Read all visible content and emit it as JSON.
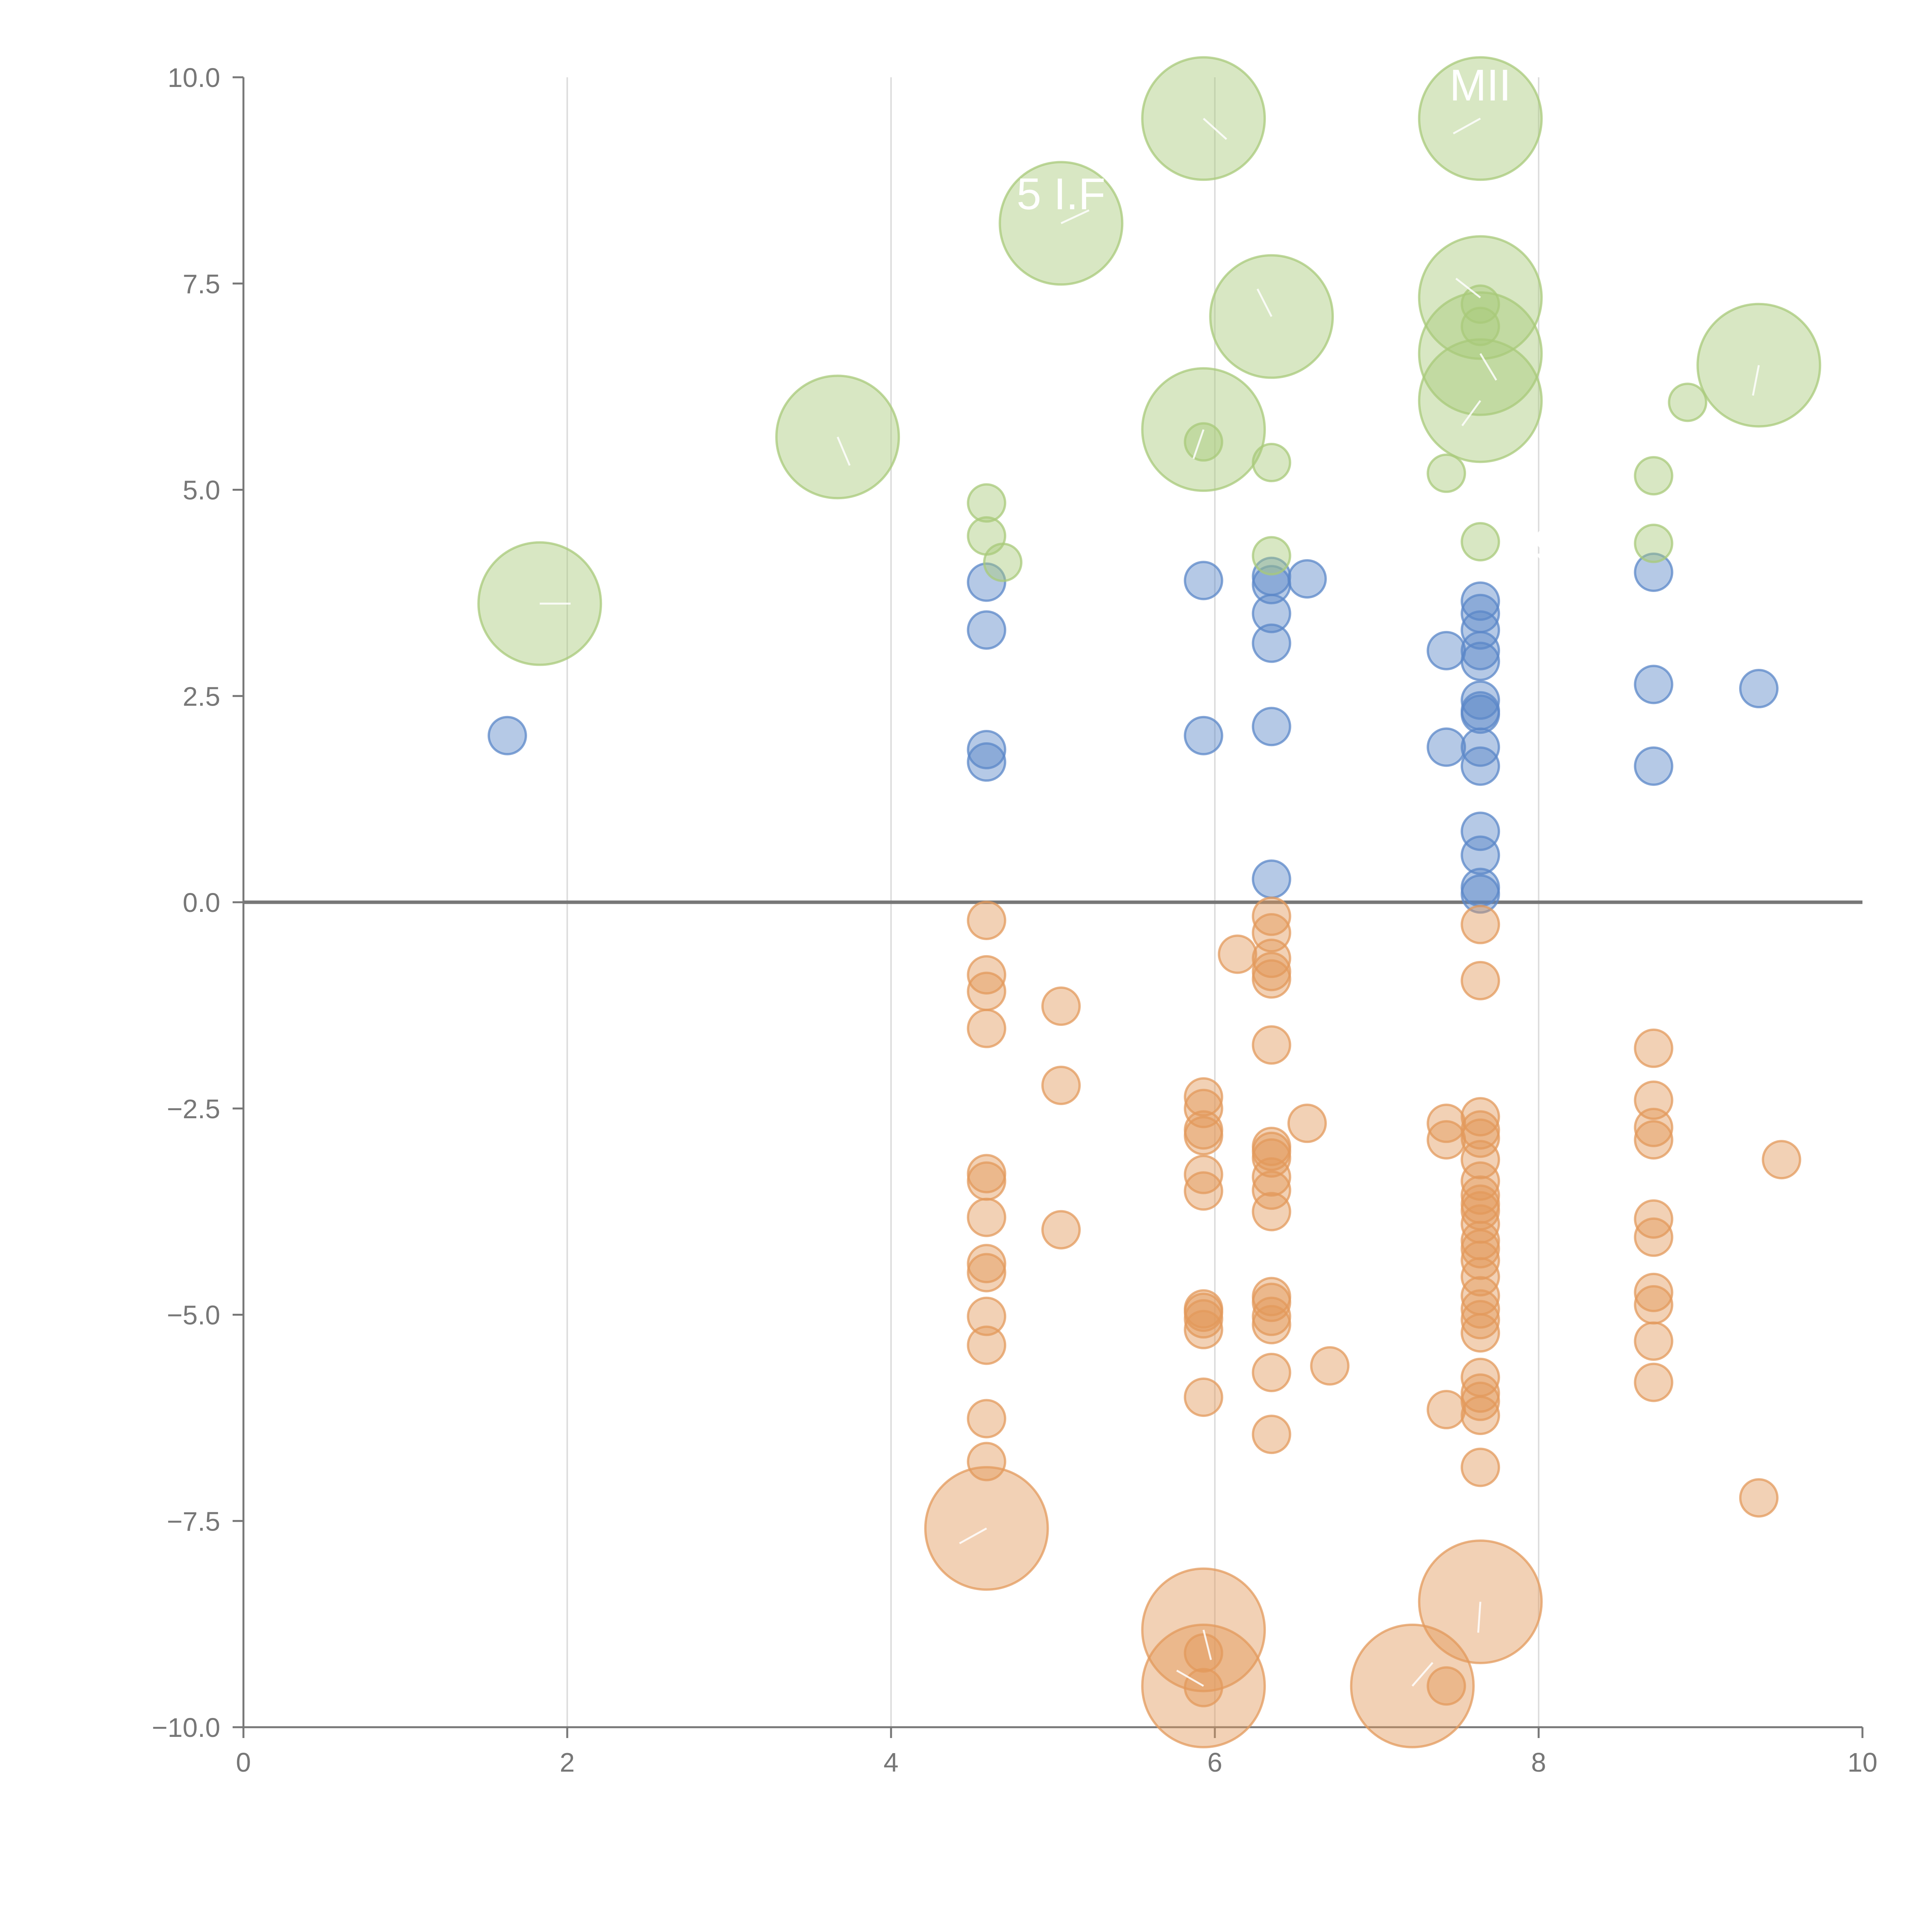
{
  "chart_data": {
    "type": "scatter",
    "variant": "bubble",
    "title": "",
    "xlabel": "",
    "ylabel": "",
    "xlim": [
      0,
      10
    ],
    "ylim": [
      -10,
      10
    ],
    "x_ticks": [
      "0",
      "2",
      "4",
      "6",
      "8",
      "10"
    ],
    "y_ticks": [
      "10.0",
      "7.5",
      "5.0",
      "2.5",
      "0.0",
      "−2.5",
      "−5.0",
      "−7.5",
      "−10.0"
    ],
    "x_gridlines": [
      2,
      4,
      6,
      8
    ],
    "zero_line": 0,
    "series": [
      {
        "name": "blue",
        "color": "#5b87c8",
        "points": [
          {
            "x": 1.63,
            "y": 2.02,
            "size": 1
          },
          {
            "x": 4.59,
            "y": 3.88,
            "size": 1
          },
          {
            "x": 4.59,
            "y": 3.3,
            "size": 1
          },
          {
            "x": 4.59,
            "y": 1.85,
            "size": 1
          },
          {
            "x": 4.59,
            "y": 1.7,
            "size": 1
          },
          {
            "x": 5.93,
            "y": 3.9,
            "size": 1
          },
          {
            "x": 5.93,
            "y": 2.02,
            "size": 1
          },
          {
            "x": 6.35,
            "y": 3.95,
            "size": 1
          },
          {
            "x": 6.35,
            "y": 3.85,
            "size": 1
          },
          {
            "x": 6.35,
            "y": 3.5,
            "size": 1
          },
          {
            "x": 6.35,
            "y": 3.14,
            "size": 1
          },
          {
            "x": 6.35,
            "y": 2.13,
            "size": 1
          },
          {
            "x": 6.35,
            "y": 0.28,
            "size": 1
          },
          {
            "x": 6.57,
            "y": 3.92,
            "size": 1
          },
          {
            "x": 7.43,
            "y": 3.05,
            "size": 1
          },
          {
            "x": 7.43,
            "y": 1.88,
            "size": 1
          },
          {
            "x": 7.64,
            "y": 3.65,
            "size": 1
          },
          {
            "x": 7.64,
            "y": 3.5,
            "size": 1
          },
          {
            "x": 7.64,
            "y": 3.3,
            "size": 1
          },
          {
            "x": 7.64,
            "y": 3.05,
            "size": 1
          },
          {
            "x": 7.64,
            "y": 2.92,
            "size": 1
          },
          {
            "x": 7.64,
            "y": 2.45,
            "size": 1
          },
          {
            "x": 7.64,
            "y": 2.32,
            "size": 1
          },
          {
            "x": 7.64,
            "y": 2.28,
            "size": 1
          },
          {
            "x": 7.64,
            "y": 1.88,
            "size": 1
          },
          {
            "x": 7.64,
            "y": 1.65,
            "size": 1
          },
          {
            "x": 7.64,
            "y": 0.86,
            "size": 1
          },
          {
            "x": 7.64,
            "y": 0.57,
            "size": 1
          },
          {
            "x": 7.64,
            "y": 0.18,
            "size": 1
          },
          {
            "x": 7.64,
            "y": 0.1,
            "size": 1
          },
          {
            "x": 8.71,
            "y": 4.0,
            "size": 1
          },
          {
            "x": 8.71,
            "y": 2.64,
            "size": 1
          },
          {
            "x": 8.71,
            "y": 1.65,
            "size": 1
          },
          {
            "x": 9.36,
            "y": 2.59,
            "size": 1
          }
        ]
      },
      {
        "name": "orange",
        "color": "#e39a5c",
        "points": [
          {
            "x": 4.59,
            "y": -0.22,
            "size": 1
          },
          {
            "x": 4.59,
            "y": -0.88,
            "size": 1
          },
          {
            "x": 4.59,
            "y": -1.08,
            "size": 1
          },
          {
            "x": 4.59,
            "y": -1.53,
            "size": 1
          },
          {
            "x": 4.59,
            "y": -3.29,
            "size": 1
          },
          {
            "x": 4.59,
            "y": -3.38,
            "size": 1
          },
          {
            "x": 4.59,
            "y": -3.82,
            "size": 1
          },
          {
            "x": 4.59,
            "y": -4.38,
            "size": 1
          },
          {
            "x": 4.59,
            "y": -4.49,
            "size": 1
          },
          {
            "x": 4.59,
            "y": -5.02,
            "size": 1
          },
          {
            "x": 4.59,
            "y": -5.37,
            "size": 1
          },
          {
            "x": 4.59,
            "y": -6.26,
            "size": 1
          },
          {
            "x": 4.59,
            "y": -6.78,
            "size": 1
          },
          {
            "x": 4.59,
            "y": -7.59,
            "size": 3.3
          },
          {
            "x": 5.05,
            "y": -1.26,
            "size": 1
          },
          {
            "x": 5.05,
            "y": -2.22,
            "size": 1
          },
          {
            "x": 5.05,
            "y": -3.97,
            "size": 1
          },
          {
            "x": 5.93,
            "y": -2.36,
            "size": 1
          },
          {
            "x": 5.93,
            "y": -2.5,
            "size": 1
          },
          {
            "x": 5.93,
            "y": -2.76,
            "size": 1
          },
          {
            "x": 5.93,
            "y": -2.83,
            "size": 1
          },
          {
            "x": 5.93,
            "y": -3.3,
            "size": 1
          },
          {
            "x": 5.93,
            "y": -3.5,
            "size": 1
          },
          {
            "x": 5.93,
            "y": -4.93,
            "size": 1
          },
          {
            "x": 5.93,
            "y": -4.97,
            "size": 1
          },
          {
            "x": 5.93,
            "y": -5.05,
            "size": 1
          },
          {
            "x": 5.93,
            "y": -5.18,
            "size": 1
          },
          {
            "x": 5.93,
            "y": -6.0,
            "size": 1
          },
          {
            "x": 5.93,
            "y": -8.82,
            "size": 3.3
          },
          {
            "x": 5.93,
            "y": -9.1,
            "size": 1
          },
          {
            "x": 5.93,
            "y": -9.5,
            "size": 3.3
          },
          {
            "x": 5.93,
            "y": -9.52,
            "size": 1
          },
          {
            "x": 6.14,
            "y": -0.63,
            "size": 1
          },
          {
            "x": 6.35,
            "y": -0.17,
            "size": 1
          },
          {
            "x": 6.35,
            "y": -0.37,
            "size": 1
          },
          {
            "x": 6.35,
            "y": -0.68,
            "size": 1
          },
          {
            "x": 6.35,
            "y": -0.84,
            "size": 1
          },
          {
            "x": 6.35,
            "y": -0.93,
            "size": 1
          },
          {
            "x": 6.35,
            "y": -1.73,
            "size": 1
          },
          {
            "x": 6.35,
            "y": -2.96,
            "size": 1
          },
          {
            "x": 6.35,
            "y": -3.02,
            "size": 1
          },
          {
            "x": 6.35,
            "y": -3.1,
            "size": 1
          },
          {
            "x": 6.35,
            "y": -3.33,
            "size": 1
          },
          {
            "x": 6.35,
            "y": -3.49,
            "size": 1
          },
          {
            "x": 6.35,
            "y": -3.75,
            "size": 1
          },
          {
            "x": 6.35,
            "y": -4.78,
            "size": 1
          },
          {
            "x": 6.35,
            "y": -4.85,
            "size": 1
          },
          {
            "x": 6.35,
            "y": -5.02,
            "size": 1
          },
          {
            "x": 6.35,
            "y": -5.12,
            "size": 1
          },
          {
            "x": 6.35,
            "y": -5.7,
            "size": 1
          },
          {
            "x": 6.35,
            "y": -6.45,
            "size": 1
          },
          {
            "x": 6.57,
            "y": -2.68,
            "size": 1
          },
          {
            "x": 6.71,
            "y": -5.62,
            "size": 1
          },
          {
            "x": 7.22,
            "y": -9.5,
            "size": 3.3
          },
          {
            "x": 7.43,
            "y": -9.5,
            "size": 1
          },
          {
            "x": 7.43,
            "y": -2.68,
            "size": 1
          },
          {
            "x": 7.43,
            "y": -2.88,
            "size": 1
          },
          {
            "x": 7.43,
            "y": -6.15,
            "size": 1
          },
          {
            "x": 7.64,
            "y": -0.27,
            "size": 1
          },
          {
            "x": 7.64,
            "y": -0.95,
            "size": 1
          },
          {
            "x": 7.64,
            "y": -2.6,
            "size": 1
          },
          {
            "x": 7.64,
            "y": -2.76,
            "size": 1
          },
          {
            "x": 7.64,
            "y": -2.86,
            "size": 1
          },
          {
            "x": 7.64,
            "y": -3.12,
            "size": 1
          },
          {
            "x": 7.64,
            "y": -3.38,
            "size": 1
          },
          {
            "x": 7.64,
            "y": -3.55,
            "size": 1
          },
          {
            "x": 7.64,
            "y": -3.66,
            "size": 1
          },
          {
            "x": 7.64,
            "y": -3.74,
            "size": 1
          },
          {
            "x": 7.64,
            "y": -3.9,
            "size": 1
          },
          {
            "x": 7.64,
            "y": -4.1,
            "size": 1
          },
          {
            "x": 7.64,
            "y": -4.2,
            "size": 1
          },
          {
            "x": 7.64,
            "y": -4.34,
            "size": 1
          },
          {
            "x": 7.64,
            "y": -4.54,
            "size": 1
          },
          {
            "x": 7.64,
            "y": -4.77,
            "size": 1
          },
          {
            "x": 7.64,
            "y": -4.93,
            "size": 1
          },
          {
            "x": 7.64,
            "y": -5.06,
            "size": 1
          },
          {
            "x": 7.64,
            "y": -5.22,
            "size": 1
          },
          {
            "x": 7.64,
            "y": -5.76,
            "size": 1
          },
          {
            "x": 7.64,
            "y": -5.95,
            "size": 1
          },
          {
            "x": 7.64,
            "y": -6.05,
            "size": 1
          },
          {
            "x": 7.64,
            "y": -6.22,
            "size": 1
          },
          {
            "x": 7.64,
            "y": -6.85,
            "size": 1
          },
          {
            "x": 7.64,
            "y": -8.48,
            "size": 3.3
          },
          {
            "x": 8.71,
            "y": -1.77,
            "size": 1
          },
          {
            "x": 8.71,
            "y": -2.4,
            "size": 1
          },
          {
            "x": 8.71,
            "y": -2.73,
            "size": 1
          },
          {
            "x": 8.71,
            "y": -2.88,
            "size": 1
          },
          {
            "x": 8.71,
            "y": -3.84,
            "size": 1
          },
          {
            "x": 8.71,
            "y": -4.06,
            "size": 1
          },
          {
            "x": 8.71,
            "y": -4.73,
            "size": 1
          },
          {
            "x": 8.71,
            "y": -4.88,
            "size": 1
          },
          {
            "x": 8.71,
            "y": -5.32,
            "size": 1
          },
          {
            "x": 8.71,
            "y": -5.82,
            "size": 1
          },
          {
            "x": 9.36,
            "y": -7.22,
            "size": 1
          },
          {
            "x": 9.5,
            "y": -3.12,
            "size": 1
          }
        ]
      },
      {
        "name": "green",
        "color": "#a8c97a",
        "points": [
          {
            "x": 1.83,
            "y": 3.62,
            "size": 3.3
          },
          {
            "x": 3.67,
            "y": 5.64,
            "size": 3.3
          },
          {
            "x": 4.59,
            "y": 4.84,
            "size": 1
          },
          {
            "x": 4.59,
            "y": 4.44,
            "size": 1
          },
          {
            "x": 4.69,
            "y": 4.12,
            "size": 1
          },
          {
            "x": 5.05,
            "y": 8.23,
            "size": 3.3
          },
          {
            "x": 5.93,
            "y": 9.5,
            "size": 3.3
          },
          {
            "x": 5.93,
            "y": 5.73,
            "size": 3.3
          },
          {
            "x": 5.93,
            "y": 5.58,
            "size": 1
          },
          {
            "x": 6.35,
            "y": 7.1,
            "size": 3.3
          },
          {
            "x": 6.35,
            "y": 5.33,
            "size": 1
          },
          {
            "x": 6.35,
            "y": 4.2,
            "size": 1
          },
          {
            "x": 7.43,
            "y": 5.2,
            "size": 1
          },
          {
            "x": 7.64,
            "y": 9.5,
            "size": 3.3
          },
          {
            "x": 7.64,
            "y": 7.33,
            "size": 3.3
          },
          {
            "x": 7.64,
            "y": 7.25,
            "size": 1
          },
          {
            "x": 7.64,
            "y": 6.98,
            "size": 1
          },
          {
            "x": 7.64,
            "y": 6.65,
            "size": 3.3
          },
          {
            "x": 7.64,
            "y": 6.08,
            "size": 3.3
          },
          {
            "x": 7.64,
            "y": 4.37,
            "size": 1
          },
          {
            "x": 8.71,
            "y": 5.17,
            "size": 1
          },
          {
            "x": 8.71,
            "y": 4.35,
            "size": 1
          },
          {
            "x": 8.92,
            "y": 6.06,
            "size": 1
          },
          {
            "x": 9.36,
            "y": 6.51,
            "size": 3.3
          }
        ]
      }
    ],
    "annotations": [
      {
        "text": "MII",
        "x": 7.64,
        "y": 9.72
      },
      {
        "text": "5 I.F",
        "x": 5.05,
        "y": 8.4
      },
      {
        "text": "9 M",
        "x": 8.2,
        "y": 4.15
      }
    ]
  }
}
